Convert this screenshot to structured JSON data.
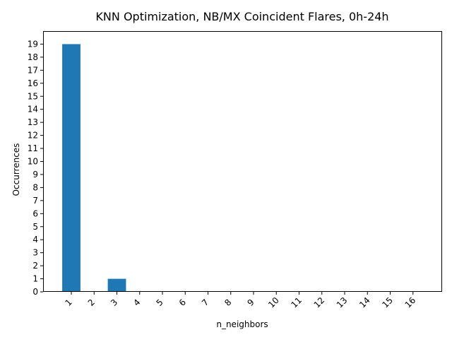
{
  "chart_data": {
    "type": "bar",
    "title": "KNN Optimization, NB/MX Coincident Flares, 0h-24h",
    "xlabel": "n_neighbors",
    "ylabel": "Occurrences",
    "categories": [
      "1",
      "2",
      "3",
      "4",
      "5",
      "6",
      "7",
      "8",
      "9",
      "10",
      "11",
      "12",
      "13",
      "14",
      "15",
      "16"
    ],
    "values": [
      19,
      0,
      1,
      0,
      0,
      0,
      0,
      0,
      0,
      0,
      0,
      0,
      0,
      0,
      0,
      0
    ],
    "yticks": [
      "0",
      "1",
      "2",
      "3",
      "4",
      "5",
      "6",
      "7",
      "8",
      "9",
      "10",
      "11",
      "12",
      "13",
      "14",
      "15",
      "16",
      "17",
      "18",
      "19"
    ],
    "ylim": [
      0,
      20
    ],
    "xtick_rotation_deg": 45,
    "grid": false,
    "bar_color": "#1f77b4"
  }
}
